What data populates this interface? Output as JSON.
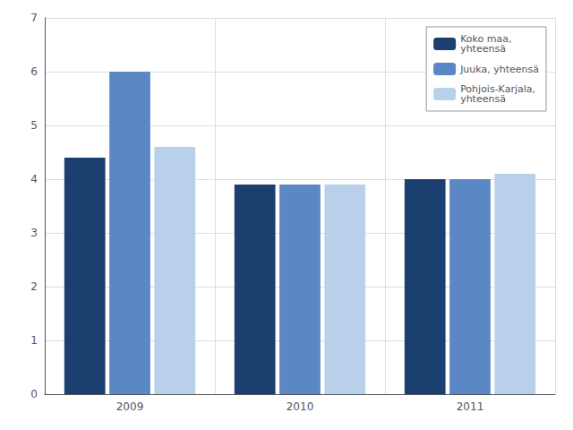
{
  "chart_data": {
    "type": "bar",
    "categories": [
      "2009",
      "2010",
      "2011"
    ],
    "series": [
      {
        "name": "Koko maa,\nyhteensä",
        "color": "#1b3f6e",
        "values": [
          4.4,
          3.9,
          4.0
        ]
      },
      {
        "name": "Juuka, yhteensä",
        "color": "#5b87c5",
        "values": [
          6.0,
          3.9,
          4.0
        ]
      },
      {
        "name": "Pohjois-Karjala,\nyhteensä",
        "color": "#b8d0ea",
        "values": [
          4.6,
          3.9,
          4.1
        ]
      }
    ],
    "ylim": [
      0,
      7
    ],
    "yticks": [
      0,
      1,
      2,
      3,
      4,
      5,
      6,
      7
    ],
    "grid": true,
    "legend": "upper right"
  }
}
